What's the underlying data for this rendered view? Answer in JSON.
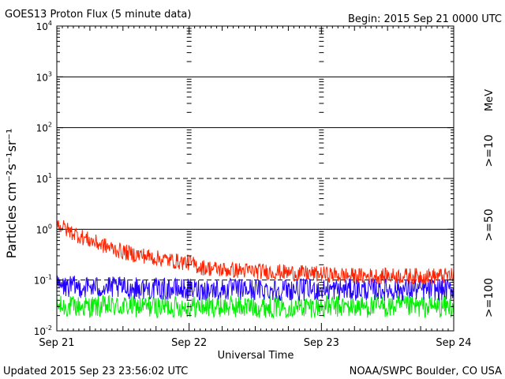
{
  "chart_data": {
    "type": "line",
    "title": "GOES13 Proton Flux (5 minute data)",
    "begin_label": "Begin: 2015 Sep 21 0000 UTC",
    "xlabel": "Universal Time",
    "ylabel": "Particles cm⁻²s⁻¹sr⁻¹",
    "y_scale": "log",
    "ylim": [
      0.01,
      10000
    ],
    "y_ticks": [
      {
        "base": "10",
        "exp": "-2",
        "value": 0.01
      },
      {
        "base": "10",
        "exp": "-1",
        "value": 0.1
      },
      {
        "base": "10",
        "exp": "0",
        "value": 1
      },
      {
        "base": "10",
        "exp": "1",
        "value": 10
      },
      {
        "base": "10",
        "exp": "2",
        "value": 100
      },
      {
        "base": "10",
        "exp": "3",
        "value": 1000
      },
      {
        "base": "10",
        "exp": "4",
        "value": 10000
      }
    ],
    "xlim": [
      "2015-09-21",
      "2015-09-24"
    ],
    "x_ticks": [
      "Sep 21",
      "Sep 22",
      "Sep 23",
      "Sep 24"
    ],
    "grid": {
      "solid_y": [
        1,
        100,
        1000
      ],
      "dashed_y": [
        0.1,
        10
      ]
    },
    "unit_label": "MeV",
    "series": [
      {
        "name": ">=10",
        "color": "#ff2200",
        "x": [
          "2015-09-21 00:00",
          "2015-09-21 02:00",
          "2015-09-21 04:00",
          "2015-09-21 06:00",
          "2015-09-21 08:00",
          "2015-09-21 10:00",
          "2015-09-21 12:00",
          "2015-09-21 14:00",
          "2015-09-21 16:00",
          "2015-09-21 18:00",
          "2015-09-21 20:00",
          "2015-09-21 22:00",
          "2015-09-22 00:00",
          "2015-09-22 02:00",
          "2015-09-22 06:00",
          "2015-09-22 12:00",
          "2015-09-22 18:00",
          "2015-09-23 00:00",
          "2015-09-23 06:00",
          "2015-09-23 12:00",
          "2015-09-23 18:00",
          "2015-09-24 00:00"
        ],
        "values": [
          1.3,
          0.95,
          0.75,
          0.6,
          0.5,
          0.42,
          0.36,
          0.32,
          0.3,
          0.27,
          0.25,
          0.23,
          0.22,
          0.18,
          0.16,
          0.15,
          0.14,
          0.13,
          0.12,
          0.12,
          0.12,
          0.12
        ]
      },
      {
        "name": ">=50",
        "color": "#2200ff",
        "x": [
          "2015-09-21 00:00",
          "2015-09-21 12:00",
          "2015-09-22 00:00",
          "2015-09-22 12:00",
          "2015-09-23 00:00",
          "2015-09-23 12:00",
          "2015-09-24 00:00"
        ],
        "values": [
          0.075,
          0.07,
          0.065,
          0.065,
          0.065,
          0.065,
          0.065
        ]
      },
      {
        "name": ">=100",
        "color": "#00ee00",
        "x": [
          "2015-09-21 00:00",
          "2015-09-21 12:00",
          "2015-09-22 00:00",
          "2015-09-22 12:00",
          "2015-09-23 00:00",
          "2015-09-23 12:00",
          "2015-09-24 00:00"
        ],
        "values": [
          0.03,
          0.03,
          0.03,
          0.03,
          0.03,
          0.03,
          0.03
        ]
      }
    ]
  },
  "footer": {
    "updated": "Updated 2015 Sep 23 23:56:02 UTC",
    "credit": "NOAA/SWPC Boulder, CO USA"
  }
}
